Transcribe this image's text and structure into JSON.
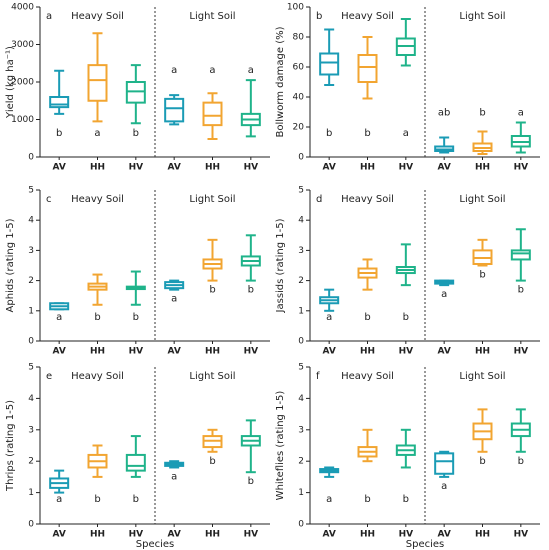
{
  "chart_data": [
    {
      "type": "box",
      "panel": "a",
      "group_labels": [
        "Heavy Soil",
        "Light Soil"
      ],
      "y_label": "Yield (kg ha⁻¹)",
      "categories": [
        "AV",
        "HH",
        "HV",
        "AV",
        "HH",
        "HV"
      ],
      "colors": [
        "#1a9bb5",
        "#f2a531",
        "#1fb38a",
        "#1a9bb5",
        "#f2a531",
        "#1fb38a"
      ],
      "boxes": [
        {
          "min": 1150,
          "q1": 1330,
          "median": 1400,
          "q3": 1600,
          "max": 2300
        },
        {
          "min": 950,
          "q1": 1500,
          "median": 2050,
          "q3": 2450,
          "max": 3300
        },
        {
          "min": 900,
          "q1": 1450,
          "median": 1750,
          "q3": 2000,
          "max": 2450
        },
        {
          "min": 870,
          "q1": 950,
          "median": 1300,
          "q3": 1550,
          "max": 1650
        },
        {
          "min": 480,
          "q1": 850,
          "median": 1100,
          "q3": 1450,
          "max": 1700
        },
        {
          "min": 550,
          "q1": 850,
          "median": 1000,
          "q3": 1150,
          "max": 2050
        }
      ],
      "letters": [
        "b",
        "a",
        "b",
        "a",
        "a",
        "a"
      ],
      "ylim": [
        0,
        4000
      ],
      "yticks": [
        0,
        1000,
        2000,
        3000,
        4000
      ]
    },
    {
      "type": "box",
      "panel": "b",
      "group_labels": [
        "Heavy Soil",
        "Light Soil"
      ],
      "y_label": "Bollworm damage (%)",
      "categories": [
        "AV",
        "HH",
        "HV",
        "AV",
        "HH",
        "HV"
      ],
      "colors": [
        "#1a9bb5",
        "#f2a531",
        "#1fb38a",
        "#1a9bb5",
        "#f2a531",
        "#1fb38a"
      ],
      "boxes": [
        {
          "min": 48,
          "q1": 55,
          "median": 63,
          "q3": 69,
          "max": 85
        },
        {
          "min": 39,
          "q1": 50,
          "median": 60,
          "q3": 68,
          "max": 80
        },
        {
          "min": 61,
          "q1": 68,
          "median": 74,
          "q3": 79,
          "max": 92
        },
        {
          "min": 3,
          "q1": 4,
          "median": 5,
          "q3": 7,
          "max": 13
        },
        {
          "min": 2,
          "q1": 4,
          "median": 6,
          "q3": 9,
          "max": 17
        },
        {
          "min": 3,
          "q1": 7,
          "median": 10,
          "q3": 14,
          "max": 23
        }
      ],
      "letters": [
        "b",
        "b",
        "a",
        "ab",
        "b",
        "a"
      ],
      "ylim": [
        0,
        100
      ],
      "yticks": [
        0,
        20,
        40,
        60,
        80,
        100
      ]
    },
    {
      "type": "box",
      "panel": "c",
      "group_labels": [
        "Heavy Soil",
        "Light Soil"
      ],
      "y_label": "Aphids (rating 1-5)",
      "categories": [
        "AV",
        "HH",
        "HV",
        "AV",
        "HH",
        "HV"
      ],
      "colors": [
        "#1a9bb5",
        "#f2a531",
        "#1fb38a",
        "#1a9bb5",
        "#f2a531",
        "#1fb38a"
      ],
      "boxes": [
        {
          "min": 1.05,
          "q1": 1.05,
          "median": 1.15,
          "q3": 1.25,
          "max": 1.25
        },
        {
          "min": 1.2,
          "q1": 1.7,
          "median": 1.8,
          "q3": 1.9,
          "max": 2.2
        },
        {
          "min": 1.2,
          "q1": 1.72,
          "median": 1.77,
          "q3": 1.8,
          "max": 2.3
        },
        {
          "min": 1.7,
          "q1": 1.75,
          "median": 1.85,
          "q3": 1.95,
          "max": 2.0
        },
        {
          "min": 2.0,
          "q1": 2.4,
          "median": 2.55,
          "q3": 2.7,
          "max": 3.35
        },
        {
          "min": 2.0,
          "q1": 2.5,
          "median": 2.65,
          "q3": 2.8,
          "max": 3.5
        }
      ],
      "letters": [
        "a",
        "b",
        "b",
        "a",
        "b",
        "b"
      ],
      "ylim": [
        0,
        5
      ],
      "yticks": [
        0,
        1,
        2,
        3,
        4,
        5
      ]
    },
    {
      "type": "box",
      "panel": "d",
      "group_labels": [
        "Heavy Soil",
        "Light Soil"
      ],
      "y_label": "Jassids (rating 1-5)",
      "categories": [
        "AV",
        "HH",
        "HV",
        "AV",
        "HH",
        "HV"
      ],
      "colors": [
        "#1a9bb5",
        "#f2a531",
        "#1fb38a",
        "#1a9bb5",
        "#f2a531",
        "#1fb38a"
      ],
      "boxes": [
        {
          "min": 1.0,
          "q1": 1.25,
          "median": 1.35,
          "q3": 1.45,
          "max": 1.7
        },
        {
          "min": 1.7,
          "q1": 2.1,
          "median": 2.25,
          "q3": 2.4,
          "max": 2.7
        },
        {
          "min": 1.85,
          "q1": 2.25,
          "median": 2.35,
          "q3": 2.45,
          "max": 3.2
        },
        {
          "min": 1.85,
          "q1": 1.9,
          "median": 1.95,
          "q3": 2.0,
          "max": 2.0
        },
        {
          "min": 2.5,
          "q1": 2.55,
          "median": 2.75,
          "q3": 3.0,
          "max": 3.35
        },
        {
          "min": 2.0,
          "q1": 2.7,
          "median": 2.9,
          "q3": 3.0,
          "max": 3.7
        }
      ],
      "letters": [
        "a",
        "b",
        "b",
        "a",
        "b",
        "b"
      ],
      "ylim": [
        0,
        5
      ],
      "yticks": [
        0,
        1,
        2,
        3,
        4,
        5
      ]
    },
    {
      "type": "box",
      "panel": "e",
      "group_labels": [
        "Heavy Soil",
        "Light Soil"
      ],
      "y_label": "Thrips (rating 1-5)",
      "x_label": "Species",
      "categories": [
        "AV",
        "HH",
        "HV",
        "AV",
        "HH",
        "HV"
      ],
      "colors": [
        "#1a9bb5",
        "#f2a531",
        "#1fb38a",
        "#1a9bb5",
        "#f2a531",
        "#1fb38a"
      ],
      "boxes": [
        {
          "min": 1.0,
          "q1": 1.15,
          "median": 1.3,
          "q3": 1.45,
          "max": 1.7
        },
        {
          "min": 1.5,
          "q1": 1.8,
          "median": 2.0,
          "q3": 2.2,
          "max": 2.5
        },
        {
          "min": 1.5,
          "q1": 1.7,
          "median": 1.85,
          "q3": 2.2,
          "max": 2.8
        },
        {
          "min": 1.8,
          "q1": 1.85,
          "median": 1.9,
          "q3": 1.95,
          "max": 2.0
        },
        {
          "min": 2.3,
          "q1": 2.45,
          "median": 2.65,
          "q3": 2.8,
          "max": 3.0
        },
        {
          "min": 1.65,
          "q1": 2.5,
          "median": 2.65,
          "q3": 2.8,
          "max": 3.3
        }
      ],
      "letters": [
        "a",
        "b",
        "b",
        "a",
        "b",
        "b"
      ],
      "ylim": [
        0,
        5
      ],
      "yticks": [
        0,
        1,
        2,
        3,
        4,
        5
      ]
    },
    {
      "type": "box",
      "panel": "f",
      "group_labels": [
        "Heavy Soil",
        "Light Soil"
      ],
      "y_label": "Whiteflies (rating 1-5)",
      "x_label": "Species",
      "categories": [
        "AV",
        "HH",
        "HV",
        "AV",
        "HH",
        "HV"
      ],
      "colors": [
        "#1a9bb5",
        "#f2a531",
        "#1fb38a",
        "#1a9bb5",
        "#f2a531",
        "#1fb38a"
      ],
      "boxes": [
        {
          "min": 1.5,
          "q1": 1.65,
          "median": 1.7,
          "q3": 1.75,
          "max": 1.8
        },
        {
          "min": 2.0,
          "q1": 2.15,
          "median": 2.3,
          "q3": 2.45,
          "max": 3.0
        },
        {
          "min": 1.8,
          "q1": 2.2,
          "median": 2.35,
          "q3": 2.5,
          "max": 3.0
        },
        {
          "min": 1.5,
          "q1": 1.6,
          "median": 2.0,
          "q3": 2.25,
          "max": 2.3
        },
        {
          "min": 2.3,
          "q1": 2.7,
          "median": 2.95,
          "q3": 3.2,
          "max": 3.65
        },
        {
          "min": 2.3,
          "q1": 2.8,
          "median": 3.0,
          "q3": 3.2,
          "max": 3.65
        }
      ],
      "letters": [
        "a",
        "b",
        "b",
        "a",
        "b",
        "b"
      ],
      "ylim": [
        0,
        5
      ],
      "yticks": [
        0,
        1,
        2,
        3,
        4,
        5
      ]
    }
  ]
}
